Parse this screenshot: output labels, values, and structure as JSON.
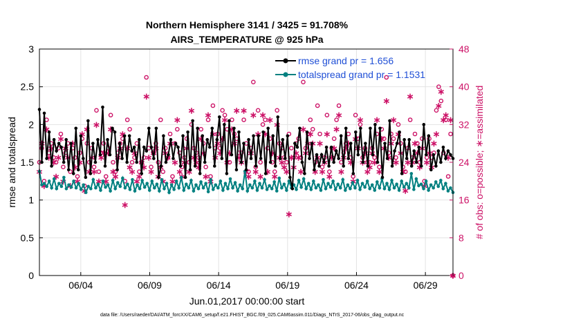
{
  "chart_data": {
    "type": "line",
    "title": "Northern Hemisphere 3141 / 3425 = 91.708%",
    "subtitle": "AIRS_TEMPERATURE @ 925 hPa",
    "xlabel": "Jun.01,2017 00:00:00 start",
    "ylabel": "rmse and totalspread",
    "ylabel_right": "# of obs: o=possible; ∗=assimilated",
    "footer": "data file: /Users/raeder/DAI/ATM_forcXX/CAM6_setup/f.e21.FHIST_BGC.f09_025.CAM6assim.011/Diags_NTrS_2017-06/obs_diag_output.nc",
    "x_ticks": [
      {
        "x": 4,
        "label": "06/04"
      },
      {
        "x": 9,
        "label": "06/09"
      },
      {
        "x": 14,
        "label": "06/14"
      },
      {
        "x": 19,
        "label": "06/19"
      },
      {
        "x": 24,
        "label": "06/24"
      },
      {
        "x": 29,
        "label": "06/29"
      }
    ],
    "xlim": [
      1.0,
      31.0
    ],
    "ylim": [
      0,
      3
    ],
    "y_ticks": [
      "0",
      "0.5",
      "1",
      "1.5",
      "2",
      "2.5",
      "3"
    ],
    "ylim_right": [
      0,
      48
    ],
    "y_ticks_right": [
      "0",
      "8",
      "16",
      "24",
      "32",
      "40",
      "48"
    ],
    "grid": true,
    "legend_position": "top-right",
    "colors": {
      "rmse": "#000000",
      "spread": "#008080",
      "obs": "#cc1166"
    },
    "series": [
      {
        "name": "rmse grand pr = 1.656",
        "axis": "left",
        "values": [
          2.2,
          1.5,
          2.15,
          1.55,
          1.9,
          1.45,
          1.8,
          1.65,
          1.75,
          1.7,
          1.5,
          1.8,
          1.4,
          1.75,
          1.35,
          1.95,
          1.4,
          1.85,
          1.55,
          1.3,
          2.05,
          1.35,
          1.75,
          1.5,
          1.8,
          1.6,
          2.23,
          1.45,
          1.8,
          1.6,
          1.95,
          1.9,
          1.4,
          1.75,
          1.55,
          1.85,
          1.5,
          1.85,
          1.65,
          1.7,
          1.5,
          1.8,
          1.35,
          1.7,
          1.65,
          1.95,
          1.7,
          1.55,
          1.95,
          1.3,
          1.45,
          1.85,
          1.5,
          1.6,
          1.8,
          1.55,
          1.75,
          1.7,
          1.45,
          1.85,
          1.3,
          1.9,
          1.4,
          2.05,
          1.45,
          1.95,
          1.35,
          1.85,
          1.5,
          1.8,
          1.7,
          1.95,
          1.45,
          1.8,
          2.1,
          1.55,
          2.0,
          1.35,
          2.05,
          1.6,
          1.95,
          1.4,
          1.9,
          1.5,
          1.75,
          1.4,
          1.8,
          1.55,
          1.85,
          1.45,
          1.85,
          1.55,
          1.9,
          1.35,
          1.95,
          1.5,
          1.85,
          1.45,
          2.1,
          1.55,
          1.8,
          1.55,
          1.85,
          1.3,
          1.15,
          1.75,
          1.7,
          1.95,
          1.5,
          1.35,
          1.9,
          1.55,
          1.75,
          1.4,
          1.6,
          1.45,
          1.6,
          1.5,
          1.7,
          1.45,
          1.7,
          1.5,
          1.65,
          1.55,
          1.85,
          1.45,
          1.95,
          1.55,
          1.75,
          1.35,
          1.9,
          1.6,
          1.95,
          1.5,
          1.75,
          1.45,
          1.95,
          1.6,
          2.0,
          1.5,
          1.95,
          1.3,
          1.75,
          1.55,
          2.05,
          1.45,
          1.65,
          1.75,
          1.9,
          1.35,
          1.8,
          1.55,
          1.8,
          1.45,
          1.65,
          1.5,
          1.7,
          1.45,
          2.0,
          1.6,
          1.85,
          1.4,
          1.6,
          1.45,
          1.65,
          1.5,
          1.7,
          1.55,
          1.65,
          1.6,
          1.55
        ]
      },
      {
        "name": "totalspread grand pr = 1.1531",
        "axis": "left",
        "values": [
          1.38,
          1.2,
          1.22,
          1.18,
          1.25,
          1.16,
          1.28,
          1.15,
          1.22,
          1.18,
          1.3,
          1.15,
          1.2,
          1.17,
          1.25,
          1.16,
          1.22,
          1.14,
          1.2,
          1.1,
          1.18,
          1.15,
          1.27,
          1.16,
          1.21,
          1.13,
          1.25,
          1.17,
          1.2,
          1.12,
          1.26,
          1.15,
          1.23,
          1.18,
          1.29,
          1.16,
          1.21,
          1.14,
          1.27,
          1.12,
          1.2,
          1.15,
          1.26,
          1.17,
          1.22,
          1.13,
          1.25,
          1.16,
          1.21,
          1.12,
          1.27,
          1.15,
          1.22,
          1.1,
          1.2,
          1.14,
          1.25,
          1.16,
          1.3,
          1.13,
          1.21,
          1.16,
          1.26,
          1.12,
          1.2,
          1.15,
          1.24,
          1.16,
          1.22,
          1.11,
          1.27,
          1.14,
          1.2,
          1.16,
          1.25,
          1.13,
          1.22,
          1.15,
          1.28,
          1.16,
          1.23,
          1.12,
          1.2,
          1.15,
          1.38,
          1.12,
          1.2,
          1.16,
          1.25,
          1.13,
          1.22,
          1.16,
          1.27,
          1.14,
          1.19,
          1.15,
          1.24,
          1.12,
          1.29,
          1.16,
          1.21,
          1.13,
          1.25,
          1.16,
          1.2,
          1.14,
          1.26,
          1.17,
          1.28,
          1.15,
          1.22,
          1.14,
          1.25,
          1.16,
          1.2,
          1.13,
          1.27,
          1.15,
          1.22,
          1.17,
          1.25,
          1.14,
          1.21,
          1.16,
          1.27,
          1.13,
          1.2,
          1.15,
          1.23,
          1.16,
          1.26,
          1.14,
          1.22,
          1.17,
          1.25,
          1.15,
          1.2,
          1.13,
          1.24,
          1.16,
          1.28,
          1.15,
          1.22,
          1.14,
          1.26,
          1.16,
          1.21,
          1.13,
          1.25,
          1.17,
          1.22,
          1.16,
          1.35,
          1.14,
          1.28,
          1.19,
          1.21,
          1.15,
          1.25,
          1.13,
          1.2,
          1.16,
          1.24,
          1.18,
          1.26,
          1.15,
          1.22,
          1.12,
          1.16,
          1.1
        ]
      },
      {
        "name": "possible",
        "axis": "right",
        "marker": "o",
        "values": [
          24,
          27,
          20,
          33,
          26,
          28,
          25,
          24,
          27,
          30,
          23,
          26,
          28,
          22,
          27,
          25,
          21,
          26,
          29,
          19,
          28,
          24,
          27,
          23,
          35,
          22,
          26,
          28,
          21,
          27,
          34,
          24,
          22,
          26,
          28,
          29,
          20,
          33,
          31,
          24,
          25,
          28,
          22,
          24,
          25,
          42,
          27,
          23,
          26,
          28,
          24,
          33,
          22,
          27,
          25,
          30,
          21,
          28,
          31,
          26,
          23,
          25,
          29,
          24,
          32,
          27,
          26,
          25,
          31,
          28,
          23,
          33,
          21,
          36,
          27,
          30,
          27,
          35,
          34,
          31,
          24,
          33,
          30,
          29,
          26,
          26,
          33,
          28,
          22,
          27,
          41,
          23,
          35,
          24,
          32,
          33,
          27,
          29,
          24,
          22,
          35,
          28,
          27,
          25,
          24,
          30,
          27,
          25,
          28,
          29,
          25,
          41,
          27,
          30,
          33,
          31,
          24,
          36,
          30,
          23,
          25,
          34,
          22,
          27,
          29,
          33,
          36,
          24,
          26,
          28,
          30,
          25,
          21,
          34,
          29,
          32,
          25,
          27,
          24,
          24,
          27,
          25,
          30,
          23,
          31,
          29,
          42,
          26,
          30,
          29,
          25,
          32,
          28,
          23,
          22,
          27,
          33,
          25,
          30,
          28,
          24,
          29,
          20,
          25,
          29,
          25,
          26,
          35,
          40,
          37,
          26,
          33,
          21,
          30,
          0
        ]
      },
      {
        "name": "assimilated",
        "axis": "right",
        "marker": "*",
        "values": [
          22,
          28,
          19,
          31,
          25,
          27,
          24,
          21,
          25,
          29,
          20,
          27,
          25,
          19,
          28,
          23,
          20,
          24,
          30,
          18,
          31,
          22,
          25,
          22,
          32,
          20,
          25,
          26,
          20,
          26,
          31,
          22,
          21,
          25,
          27,
          30,
          15,
          27,
          23,
          22,
          26,
          20,
          21,
          24,
          23,
          38,
          25,
          22,
          26,
          27,
          21,
          23,
          20,
          26,
          25,
          28,
          20,
          24,
          33,
          22,
          21,
          24,
          27,
          22,
          35,
          25,
          24,
          23,
          29,
          26,
          21,
          34,
          20,
          30,
          25,
          28,
          26,
          29,
          33,
          24,
          26,
          31,
          28,
          35,
          25,
          24,
          35,
          22,
          21,
          26,
          34,
          22,
          30,
          21,
          34,
          30,
          22,
          33,
          26,
          21,
          32,
          25,
          24,
          23,
          22,
          13,
          25,
          23,
          26,
          25,
          22,
          31,
          26,
          28,
          30,
          28,
          22,
          25,
          28,
          22,
          24,
          30,
          21,
          25,
          27,
          31,
          34,
          22,
          25,
          27,
          28,
          24,
          20,
          29,
          27,
          33,
          24,
          26,
          22,
          23,
          26,
          24,
          33,
          22,
          29,
          27,
          37,
          25,
          28,
          33,
          24,
          30,
          26,
          22,
          18,
          24,
          38,
          24,
          28,
          26,
          23,
          27,
          19,
          24,
          26,
          23,
          28,
          30,
          36,
          39,
          33,
          34,
          25,
          33,
          0
        ]
      }
    ]
  }
}
